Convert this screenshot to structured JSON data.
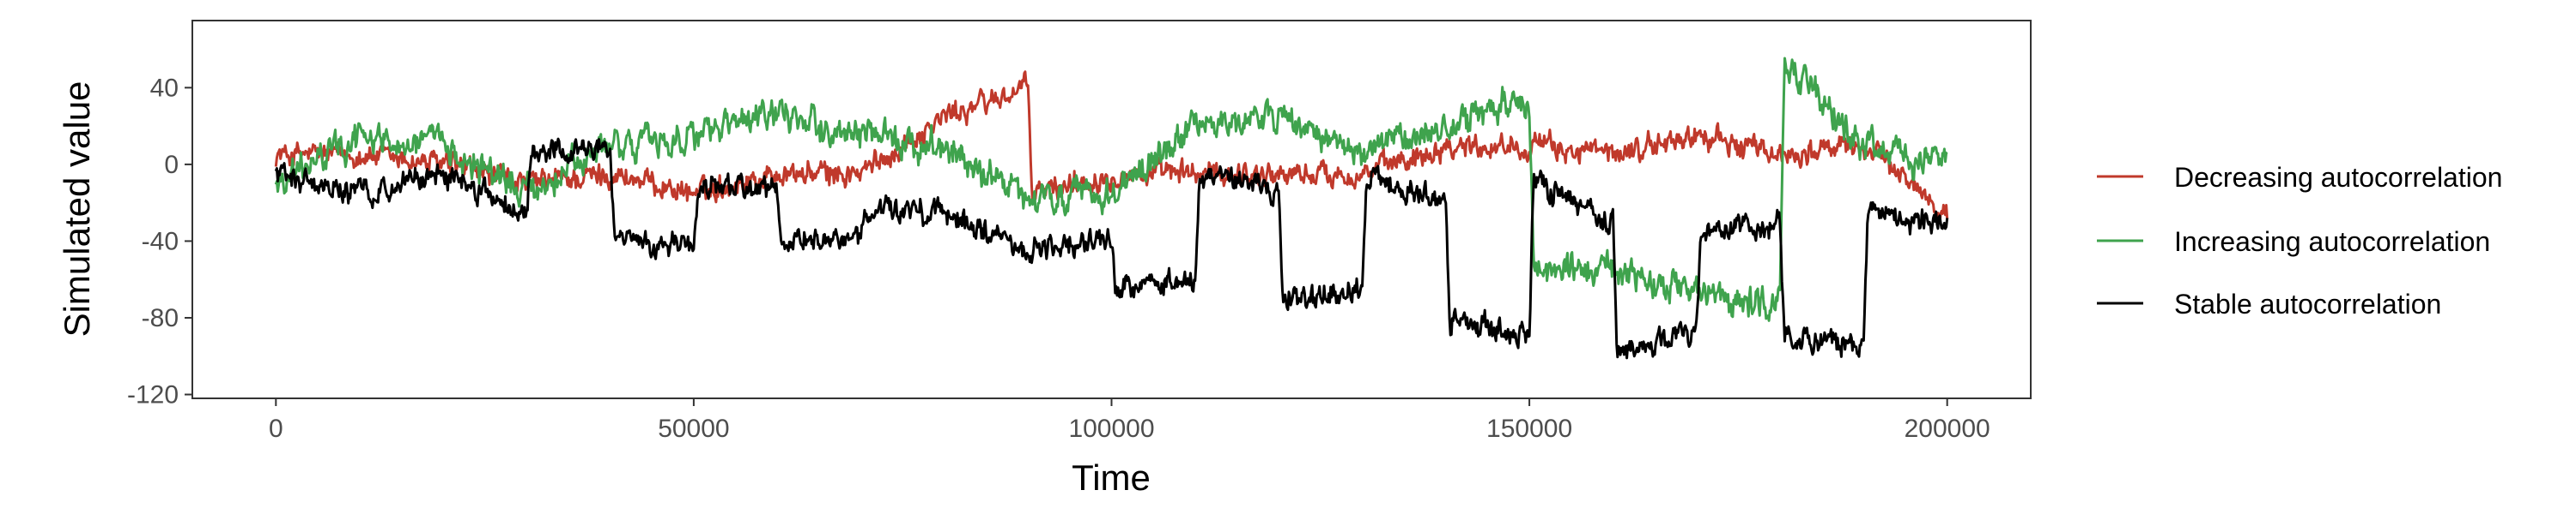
{
  "chart_data": {
    "type": "line",
    "xlabel": "Time",
    "ylabel": "Simulated value",
    "xlim": [
      -10000,
      210000
    ],
    "ylim": [
      -122,
      75
    ],
    "xticks": [
      0,
      50000,
      100000,
      150000,
      200000
    ],
    "xtick_labels": [
      "0",
      "50000",
      "100000",
      "150000",
      "200000"
    ],
    "yticks": [
      -120,
      -80,
      -40,
      0,
      40
    ],
    "ytick_labels": [
      "-120",
      "-80",
      "-40",
      "0",
      "40"
    ],
    "grid": false,
    "legend_position": "right",
    "series": [
      {
        "name": "Decreasing autocorrelation",
        "color": "#C0392B",
        "noise_amplitude": 4,
        "x": [
          0,
          10000,
          20000,
          30000,
          40000,
          50000,
          60000,
          70000,
          80000,
          90000,
          90500,
          100000,
          110000,
          120000,
          130000,
          140000,
          150000,
          160000,
          170000,
          180000,
          190000,
          200000
        ],
        "y": [
          5,
          5,
          0,
          -10,
          -5,
          -15,
          -5,
          -5,
          25,
          40,
          -15,
          -5,
          -5,
          -5,
          -5,
          10,
          10,
          5,
          15,
          5,
          10,
          -25
        ]
      },
      {
        "name": "Increasing autocorrelation",
        "color": "#3FA34D",
        "noise_amplitude": 5,
        "x": [
          0,
          10000,
          20000,
          30000,
          40000,
          50000,
          60000,
          70000,
          80000,
          90000,
          100000,
          110000,
          120000,
          130000,
          140000,
          150000,
          150500,
          160000,
          170000,
          180000,
          180500,
          190000,
          200000
        ],
        "y": [
          -10,
          15,
          10,
          -15,
          10,
          15,
          25,
          15,
          10,
          -20,
          -15,
          20,
          25,
          5,
          20,
          35,
          -55,
          -55,
          -70,
          -70,
          55,
          10,
          0
        ]
      },
      {
        "name": "Stable autocorrelation",
        "color": "#000000",
        "noise_amplitude": 4,
        "x": [
          0,
          10000,
          20000,
          30000,
          30500,
          40000,
          40500,
          50000,
          50500,
          60000,
          60500,
          70000,
          70500,
          80000,
          90000,
          100000,
          100500,
          110000,
          110500,
          120000,
          120500,
          130000,
          130500,
          140000,
          140500,
          150000,
          150500,
          160000,
          160500,
          170000,
          170500,
          180000,
          180500,
          190000,
          190500,
          200000
        ],
        "y": [
          -5,
          -15,
          -5,
          -25,
          5,
          10,
          -40,
          -45,
          -10,
          -15,
          -40,
          -40,
          -25,
          -25,
          -45,
          -40,
          -65,
          -60,
          -5,
          -15,
          -70,
          -65,
          -5,
          -20,
          -80,
          -90,
          -10,
          -30,
          -100,
          -85,
          -35,
          -30,
          -90,
          -95,
          -25,
          -30
        ]
      }
    ]
  },
  "legend": {
    "items": [
      {
        "label": "Decreasing autocorrelation",
        "color": "#C0392B"
      },
      {
        "label": "Increasing autocorrelation",
        "color": "#3FA34D"
      },
      {
        "label": "Stable autocorrelation",
        "color": "#000000"
      }
    ]
  }
}
